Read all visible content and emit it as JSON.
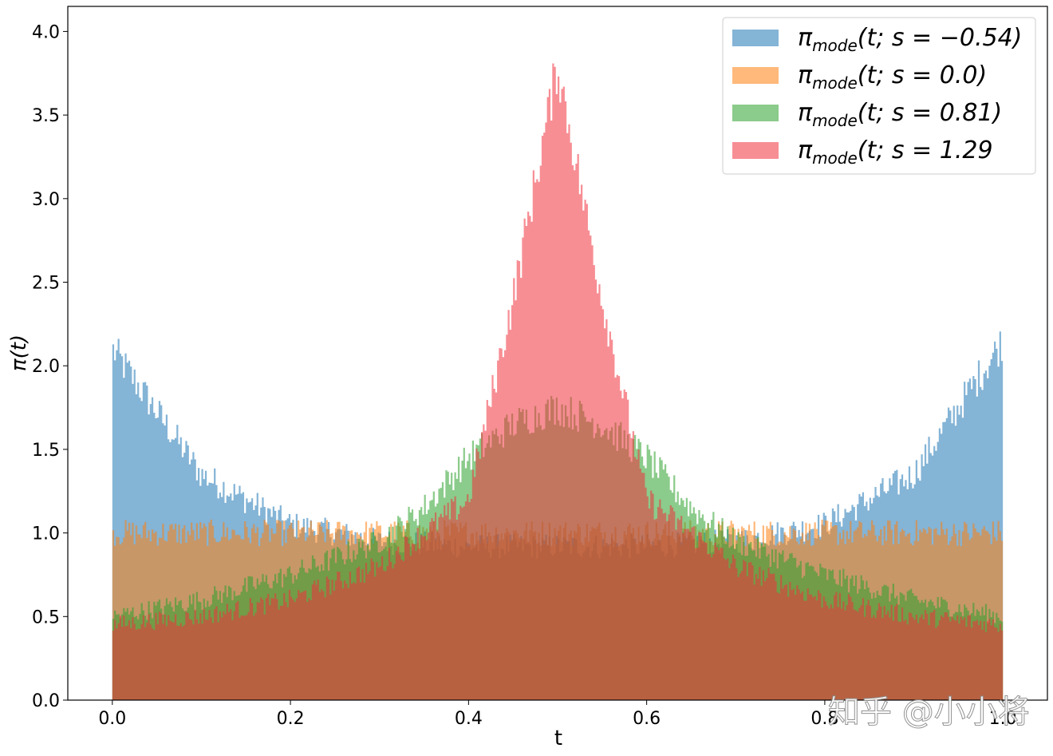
{
  "chart_data": {
    "type": "histogram",
    "xlabel": "t",
    "ylabel": "π(t)",
    "xlim": [
      -0.05,
      1.05
    ],
    "ylim": [
      0,
      4.15
    ],
    "xticks": [
      "0.0",
      "0.2",
      "0.4",
      "0.6",
      "0.8",
      "1.0"
    ],
    "yticks": [
      "0.0",
      "0.5",
      "1.0",
      "1.5",
      "2.0",
      "2.5",
      "3.0",
      "3.5",
      "4.0"
    ],
    "grid": false,
    "legend_position": "top-right",
    "bins": 500,
    "series": [
      {
        "name": "π_mode(t; s = −0.54)",
        "color": "#1f77b4",
        "alpha": 0.55,
        "approx_density": {
          "t": [
            0.0,
            0.1,
            0.2,
            0.3,
            0.4,
            0.5,
            0.6,
            0.7,
            0.8,
            0.9,
            1.0
          ],
          "y": [
            2.1,
            1.35,
            1.05,
            0.95,
            0.92,
            0.92,
            0.92,
            0.95,
            1.05,
            1.35,
            2.15
          ]
        }
      },
      {
        "name": "π_mode(t; s = 0.0)",
        "color": "#ff7f0e",
        "alpha": 0.55,
        "approx_density": {
          "t": [
            0.0,
            0.1,
            0.2,
            0.3,
            0.4,
            0.5,
            0.6,
            0.7,
            0.8,
            0.9,
            1.0
          ],
          "y": [
            1.0,
            1.0,
            1.0,
            1.0,
            1.0,
            1.0,
            1.0,
            1.0,
            1.0,
            1.0,
            1.0
          ]
        }
      },
      {
        "name": "π_mode(t; s = 0.81)",
        "color": "#2ca02c",
        "alpha": 0.55,
        "approx_density": {
          "t": [
            0.0,
            0.1,
            0.2,
            0.3,
            0.35,
            0.4,
            0.45,
            0.5,
            0.55,
            0.6,
            0.65,
            0.7,
            0.8,
            0.9,
            1.0
          ],
          "y": [
            0.5,
            0.6,
            0.75,
            0.95,
            1.15,
            1.45,
            1.65,
            1.75,
            1.65,
            1.45,
            1.15,
            0.95,
            0.75,
            0.6,
            0.5
          ]
        }
      },
      {
        "name": "π_mode(t; s = 1.29",
        "color": "#f0323c",
        "alpha": 0.55,
        "approx_density": {
          "t": [
            0.0,
            0.1,
            0.2,
            0.3,
            0.4,
            0.45,
            0.5,
            0.55,
            0.6,
            0.7,
            0.8,
            0.9,
            1.0
          ],
          "y": [
            0.45,
            0.5,
            0.6,
            0.8,
            1.2,
            2.4,
            3.8,
            2.4,
            1.2,
            0.8,
            0.6,
            0.5,
            0.45
          ]
        }
      }
    ]
  },
  "legend": [
    {
      "prefix": "π",
      "sub": "mode",
      "suffix": "(t; s = −0.54)"
    },
    {
      "prefix": "π",
      "sub": "mode",
      "suffix": "(t; s = 0.0)"
    },
    {
      "prefix": "π",
      "sub": "mode",
      "suffix": "(t; s = 0.81)"
    },
    {
      "prefix": "π",
      "sub": "mode",
      "suffix": "(t; s = 1.29"
    }
  ],
  "watermark": "知乎 @小小将"
}
